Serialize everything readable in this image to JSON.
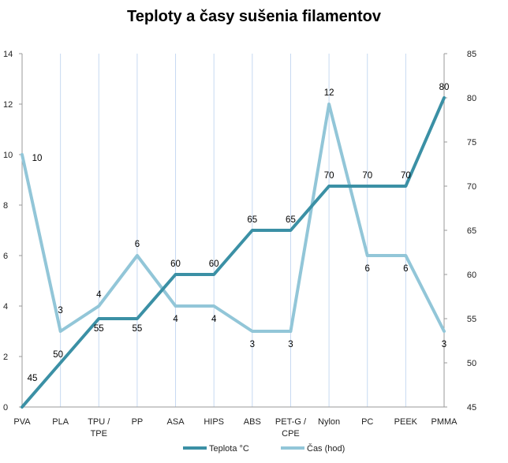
{
  "chart_data": {
    "type": "line",
    "title": "Teploty a časy sušenia filamentov",
    "categories": [
      "PVA",
      "PLA",
      "TPU / TPE",
      "PP",
      "ASA",
      "HIPS",
      "ABS",
      "PET-G / CPE",
      "Nylon",
      "PC",
      "PEEK",
      "PMMA"
    ],
    "series": [
      {
        "name": "Teplota °C",
        "axis": "right",
        "color": "#3b90a5",
        "values": [
          45,
          50,
          55,
          55,
          60,
          60,
          65,
          65,
          70,
          70,
          70,
          80
        ]
      },
      {
        "name": "Čas (hod)",
        "axis": "left",
        "color": "#92c6d8",
        "values": [
          10,
          3,
          4,
          6,
          4,
          4,
          3,
          3,
          12,
          6,
          6,
          3
        ]
      }
    ],
    "y_left": {
      "min": 0,
      "max": 14,
      "step": 2,
      "ticks": [
        "0",
        "2",
        "4",
        "6",
        "8",
        "10",
        "12",
        "14"
      ]
    },
    "y_right": {
      "min": 45,
      "max": 85,
      "step": 5,
      "ticks": [
        "45",
        "50",
        "55",
        "60",
        "65",
        "70",
        "75",
        "80",
        "85"
      ]
    },
    "vertical_gridlines": true,
    "gridline_color": "#c6d9f1",
    "legend": "bottom"
  }
}
